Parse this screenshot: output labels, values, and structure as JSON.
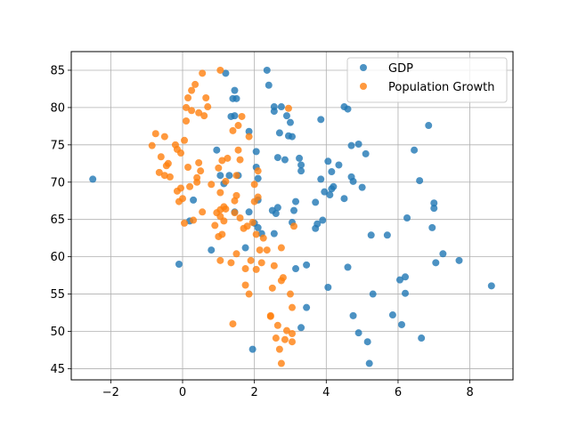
{
  "chart_data": {
    "type": "scatter",
    "title": "",
    "xlabel": "",
    "ylabel": "",
    "xlim": [
      -3.1,
      9.2
    ],
    "ylim": [
      43.5,
      87.5
    ],
    "x_ticks": [
      -2,
      0,
      2,
      4,
      6,
      8
    ],
    "y_ticks": [
      45,
      50,
      55,
      60,
      65,
      70,
      75,
      80,
      85
    ],
    "grid": true,
    "legend_position": "top-right",
    "series": [
      {
        "name": "GDP",
        "color": "#1f77b4",
        "points": [
          [
            -2.5,
            70.4
          ],
          [
            -0.1,
            59.0
          ],
          [
            0.2,
            64.8
          ],
          [
            0.3,
            67.6
          ],
          [
            0.8,
            60.9
          ],
          [
            0.95,
            74.3
          ],
          [
            1.05,
            70.9
          ],
          [
            1.15,
            69.8
          ],
          [
            1.2,
            84.6
          ],
          [
            1.3,
            70.9
          ],
          [
            1.35,
            78.8
          ],
          [
            1.4,
            81.2
          ],
          [
            1.45,
            66.0
          ],
          [
            1.45,
            78.9
          ],
          [
            1.45,
            82.3
          ],
          [
            1.5,
            81.2
          ],
          [
            1.55,
            70.9
          ],
          [
            1.75,
            61.2
          ],
          [
            1.85,
            66.0
          ],
          [
            1.85,
            76.8
          ],
          [
            1.95,
            47.6
          ],
          [
            2.0,
            64.5
          ],
          [
            2.05,
            72.0
          ],
          [
            2.05,
            74.1
          ],
          [
            2.1,
            63.9
          ],
          [
            2.1,
            67.6
          ],
          [
            2.1,
            70.5
          ],
          [
            2.2,
            63.1
          ],
          [
            2.35,
            85.0
          ],
          [
            2.4,
            83.0
          ],
          [
            2.5,
            66.2
          ],
          [
            2.55,
            63.1
          ],
          [
            2.55,
            80.1
          ],
          [
            2.55,
            79.5
          ],
          [
            2.6,
            65.8
          ],
          [
            2.65,
            66.6
          ],
          [
            2.65,
            73.3
          ],
          [
            2.7,
            76.6
          ],
          [
            2.75,
            80.1
          ],
          [
            2.85,
            73.0
          ],
          [
            2.9,
            78.9
          ],
          [
            2.95,
            76.2
          ],
          [
            3.0,
            78.0
          ],
          [
            3.05,
            76.1
          ],
          [
            3.05,
            64.6
          ],
          [
            3.1,
            66.2
          ],
          [
            3.15,
            67.4
          ],
          [
            3.15,
            58.4
          ],
          [
            3.25,
            73.2
          ],
          [
            3.3,
            71.5
          ],
          [
            3.3,
            72.3
          ],
          [
            3.3,
            50.5
          ],
          [
            3.45,
            58.9
          ],
          [
            3.45,
            53.2
          ],
          [
            3.7,
            63.8
          ],
          [
            3.7,
            67.3
          ],
          [
            3.75,
            64.4
          ],
          [
            3.85,
            78.4
          ],
          [
            3.85,
            70.4
          ],
          [
            3.9,
            64.9
          ],
          [
            3.95,
            68.7
          ],
          [
            4.05,
            72.8
          ],
          [
            4.05,
            55.9
          ],
          [
            4.1,
            68.3
          ],
          [
            4.15,
            71.4
          ],
          [
            4.15,
            69.1
          ],
          [
            4.2,
            69.4
          ],
          [
            4.35,
            72.3
          ],
          [
            4.5,
            67.8
          ],
          [
            4.5,
            80.1
          ],
          [
            4.6,
            58.6
          ],
          [
            4.6,
            79.8
          ],
          [
            4.7,
            74.9
          ],
          [
            4.7,
            70.7
          ],
          [
            4.75,
            70.1
          ],
          [
            4.75,
            52.1
          ],
          [
            4.9,
            49.8
          ],
          [
            4.9,
            75.1
          ],
          [
            5.0,
            69.3
          ],
          [
            5.1,
            73.8
          ],
          [
            5.15,
            48.6
          ],
          [
            5.2,
            45.7
          ],
          [
            5.25,
            62.9
          ],
          [
            5.3,
            55.0
          ],
          [
            5.7,
            62.9
          ],
          [
            5.85,
            52.2
          ],
          [
            6.05,
            56.9
          ],
          [
            6.1,
            50.9
          ],
          [
            6.2,
            57.3
          ],
          [
            6.2,
            55.1
          ],
          [
            6.25,
            65.2
          ],
          [
            6.45,
            74.3
          ],
          [
            6.6,
            70.2
          ],
          [
            6.65,
            49.1
          ],
          [
            6.85,
            77.6
          ],
          [
            6.95,
            63.9
          ],
          [
            7.0,
            66.5
          ],
          [
            7.0,
            67.2
          ],
          [
            7.05,
            59.2
          ],
          [
            7.25,
            60.4
          ],
          [
            7.7,
            59.5
          ],
          [
            8.6,
            56.1
          ]
        ]
      },
      {
        "name": "Population Growth",
        "color": "#ff7f0e",
        "points": [
          [
            -0.85,
            74.9
          ],
          [
            -0.75,
            76.5
          ],
          [
            -0.65,
            71.3
          ],
          [
            -0.6,
            73.4
          ],
          [
            -0.5,
            70.9
          ],
          [
            -0.5,
            76.1
          ],
          [
            -0.45,
            72.2
          ],
          [
            -0.4,
            72.5
          ],
          [
            -0.35,
            70.7
          ],
          [
            -0.2,
            75.0
          ],
          [
            -0.15,
            74.4
          ],
          [
            -0.15,
            68.8
          ],
          [
            -0.1,
            67.4
          ],
          [
            -0.05,
            69.2
          ],
          [
            -0.05,
            73.9
          ],
          [
            0.0,
            67.8
          ],
          [
            0.05,
            64.5
          ],
          [
            0.05,
            75.6
          ],
          [
            0.1,
            80.0
          ],
          [
            0.1,
            78.2
          ],
          [
            0.15,
            81.3
          ],
          [
            0.15,
            72.0
          ],
          [
            0.2,
            69.4
          ],
          [
            0.25,
            79.6
          ],
          [
            0.25,
            82.3
          ],
          [
            0.3,
            64.9
          ],
          [
            0.35,
            83.1
          ],
          [
            0.4,
            70.0
          ],
          [
            0.4,
            70.6
          ],
          [
            0.45,
            79.3
          ],
          [
            0.45,
            72.6
          ],
          [
            0.5,
            71.5
          ],
          [
            0.55,
            66.0
          ],
          [
            0.55,
            84.6
          ],
          [
            0.6,
            78.9
          ],
          [
            0.65,
            81.3
          ],
          [
            0.7,
            80.1
          ],
          [
            0.8,
            69.7
          ],
          [
            0.9,
            64.2
          ],
          [
            0.95,
            65.9
          ],
          [
            1.0,
            62.7
          ],
          [
            1.0,
            71.9
          ],
          [
            1.05,
            59.5
          ],
          [
            1.05,
            85.0
          ],
          [
            1.05,
            65.4
          ],
          [
            1.05,
            66.3
          ],
          [
            1.05,
            68.6
          ],
          [
            1.1,
            63.0
          ],
          [
            1.1,
            72.9
          ],
          [
            1.15,
            64.8
          ],
          [
            1.15,
            66.7
          ],
          [
            1.2,
            70.1
          ],
          [
            1.2,
            66.4
          ],
          [
            1.25,
            73.2
          ],
          [
            1.35,
            59.2
          ],
          [
            1.4,
            51.0
          ],
          [
            1.4,
            76.9
          ],
          [
            1.45,
            65.9
          ],
          [
            1.45,
            67.5
          ],
          [
            1.5,
            70.9
          ],
          [
            1.5,
            68.2
          ],
          [
            1.5,
            60.4
          ],
          [
            1.55,
            74.3
          ],
          [
            1.55,
            77.6
          ],
          [
            1.6,
            73.0
          ],
          [
            1.6,
            65.2
          ],
          [
            1.65,
            78.8
          ],
          [
            1.7,
            63.8
          ],
          [
            1.75,
            58.4
          ],
          [
            1.75,
            56.2
          ],
          [
            1.8,
            64.1
          ],
          [
            1.85,
            55.0
          ],
          [
            1.85,
            76.1
          ],
          [
            1.9,
            59.5
          ],
          [
            1.95,
            64.6
          ],
          [
            2.0,
            69.7
          ],
          [
            2.0,
            67.4
          ],
          [
            2.05,
            63.0
          ],
          [
            2.05,
            58.3
          ],
          [
            2.1,
            71.5
          ],
          [
            2.1,
            68.0
          ],
          [
            2.15,
            60.9
          ],
          [
            2.2,
            59.2
          ],
          [
            2.25,
            62.5
          ],
          [
            2.35,
            60.9
          ],
          [
            2.45,
            52.0
          ],
          [
            2.45,
            52.1
          ],
          [
            2.5,
            55.8
          ],
          [
            2.55,
            58.8
          ],
          [
            2.6,
            49.1
          ],
          [
            2.65,
            50.8
          ],
          [
            2.7,
            47.6
          ],
          [
            2.75,
            45.7
          ],
          [
            2.75,
            61.2
          ],
          [
            2.75,
            56.8
          ],
          [
            2.8,
            57.2
          ],
          [
            2.85,
            48.9
          ],
          [
            2.9,
            50.1
          ],
          [
            2.95,
            79.9
          ],
          [
            3.0,
            55.0
          ],
          [
            3.05,
            49.7
          ],
          [
            3.05,
            48.6
          ],
          [
            3.05,
            53.2
          ],
          [
            3.1,
            64.1
          ]
        ]
      }
    ]
  }
}
